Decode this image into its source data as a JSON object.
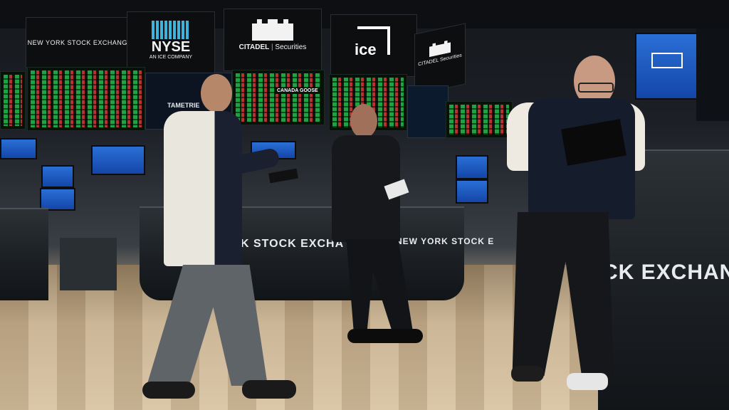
{
  "scene": {
    "description_visible": true
  },
  "signs": {
    "nyse_exchange_banner": "NEW YORK STOCK EXCHANGE",
    "nyse_logo": "NYSE",
    "nyse_logo_sub": "AN ICE COMPANY",
    "citadel": "CITADEL",
    "citadel_sub": "Securities",
    "ice": "ice",
    "citadel_right": "CITADEL",
    "citadel_right_sub": "Securities",
    "ticker_label": "CANADA GOOSE",
    "tametrie": "TAMETRIE"
  },
  "counters": {
    "center_text_left": "K STOCK EXCHA",
    "center_text_right": "NEW YORK STOCK E",
    "right_text": "CK EXCHANGE"
  },
  "colors": {
    "floor": "#c9b597",
    "counter": "#1a1e22",
    "board_green": "#1fbf4a",
    "board_red": "#d63a3a",
    "screen_blue": "#2a6fd6"
  }
}
